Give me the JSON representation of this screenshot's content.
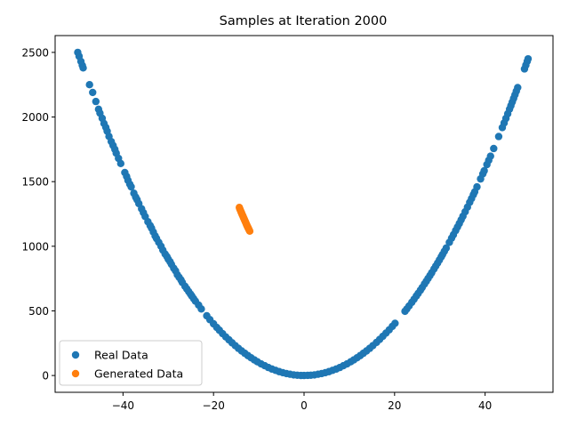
{
  "chart_data": {
    "type": "scatter",
    "title": "Samples at Iteration 2000",
    "xlabel": "",
    "ylabel": "",
    "xlim": [
      -55,
      55
    ],
    "ylim": [
      -130,
      2630
    ],
    "x_ticks": [
      -40,
      -20,
      0,
      20,
      40
    ],
    "x_tick_labels": [
      "−40",
      "−20",
      "0",
      "20",
      "40"
    ],
    "y_ticks": [
      0,
      500,
      1000,
      1500,
      2000,
      2500
    ],
    "y_tick_labels": [
      "0",
      "500",
      "1000",
      "1500",
      "2000",
      "2500"
    ],
    "grid": false,
    "legend_position": "lower-left",
    "series": [
      {
        "name": "Real Data",
        "color": "#1f77b4",
        "x": [
          -50.0,
          -49.7,
          -49.3,
          -49.0,
          -48.8,
          -47.4,
          -46.7,
          -46.0,
          -45.4,
          -45.1,
          -44.6,
          -44.2,
          -43.8,
          -43.5,
          -43.1,
          -42.6,
          -42.2,
          -41.8,
          -41.5,
          -41.0,
          -40.5,
          -39.6,
          -39.2,
          -38.9,
          -38.5,
          -38.2,
          -37.6,
          -37.2,
          -36.9,
          -36.5,
          -35.9,
          -35.5,
          -35.1,
          -34.5,
          -34.0,
          -33.7,
          -33.3,
          -32.9,
          -32.6,
          -32.1,
          -31.6,
          -31.2,
          -30.7,
          -30.3,
          -30.0,
          -29.6,
          -29.3,
          -28.8,
          -28.4,
          -28.0,
          -27.6,
          -27.2,
          -26.9,
          -26.3,
          -25.9,
          -25.5,
          -25.1,
          -24.8,
          -24.4,
          -24.0,
          -23.3,
          -22.7,
          -21.5,
          -20.8,
          -20.0,
          -19.3,
          -18.7,
          -18.0,
          -17.3,
          -16.6,
          -15.9,
          -15.2,
          -14.5,
          -13.8,
          -13.1,
          -12.4,
          -11.7,
          -11.0,
          -10.3,
          -9.5,
          -8.7,
          -7.9,
          -7.1,
          -6.3,
          -5.5,
          -4.7,
          -3.9,
          -3.1,
          -2.3,
          -1.5,
          -0.7,
          0.0,
          0.8,
          1.5,
          2.3,
          3.1,
          3.9,
          4.7,
          5.5,
          6.3,
          7.1,
          7.9,
          8.7,
          9.5,
          10.3,
          11.0,
          11.7,
          12.4,
          13.1,
          13.8,
          14.5,
          15.2,
          16.0,
          16.7,
          17.4,
          18.1,
          18.8,
          19.5,
          20.1,
          22.3,
          22.7,
          23.2,
          23.8,
          24.3,
          24.8,
          25.2,
          25.7,
          26.1,
          26.6,
          27.0,
          27.4,
          27.8,
          28.2,
          28.7,
          29.1,
          29.5,
          29.9,
          30.3,
          30.6,
          31.0,
          31.4,
          32.1,
          32.6,
          33.0,
          33.5,
          33.9,
          34.3,
          34.7,
          35.1,
          35.6,
          36.1,
          36.6,
          37.0,
          37.4,
          37.7,
          38.2,
          39.0,
          39.5,
          39.8,
          40.4,
          40.8,
          41.2,
          41.9,
          43.0,
          43.8,
          44.2,
          44.6,
          45.0,
          45.4,
          45.7,
          46.0,
          46.3,
          46.6,
          46.9,
          47.2,
          48.7,
          49.0,
          49.3,
          49.5
        ],
        "y": [
          2500,
          2470,
          2430,
          2400,
          2380,
          2250,
          2190,
          2120,
          2060,
          2030,
          1990,
          1950,
          1920,
          1890,
          1850,
          1810,
          1780,
          1750,
          1720,
          1680,
          1640,
          1570,
          1540,
          1510,
          1480,
          1460,
          1410,
          1380,
          1360,
          1330,
          1290,
          1260,
          1230,
          1190,
          1160,
          1140,
          1110,
          1080,
          1060,
          1030,
          1000,
          970,
          940,
          920,
          900,
          880,
          860,
          830,
          810,
          780,
          760,
          740,
          720,
          690,
          670,
          650,
          630,
          615,
          595,
          575,
          545,
          515,
          462,
          432,
          400,
          372,
          350,
          324,
          299,
          276,
          253,
          231,
          210,
          190,
          172,
          154,
          137,
          121,
          106,
          90,
          76,
          62,
          50,
          40,
          30,
          22,
          15,
          10,
          5,
          2,
          0,
          0,
          1,
          2,
          5,
          10,
          15,
          22,
          30,
          40,
          50,
          62,
          76,
          90,
          106,
          121,
          137,
          154,
          172,
          190,
          210,
          231,
          256,
          279,
          303,
          328,
          353,
          380,
          404,
          497,
          515,
          538,
          566,
          590,
          615,
          635,
          660,
          681,
          708,
          729,
          751,
          773,
          795,
          824,
          847,
          870,
          894,
          918,
          936,
          961,
          986,
          1030,
          1063,
          1089,
          1122,
          1149,
          1176,
          1204,
          1232,
          1267,
          1303,
          1340,
          1369,
          1399,
          1421,
          1459,
          1521,
          1560,
          1584,
          1632,
          1665,
          1697,
          1756,
          1849,
          1918,
          1954,
          1989,
          2025,
          2061,
          2088,
          2116,
          2144,
          2172,
          2200,
          2228,
          2372,
          2401,
          2430,
          2450
        ]
      },
      {
        "name": "Generated Data",
        "color": "#ff7f0e",
        "x": [
          -14.3,
          -14.2,
          -14.1,
          -14.0,
          -13.9,
          -13.8,
          -13.7,
          -13.6,
          -13.5,
          -13.4,
          -13.3,
          -13.2,
          -13.1,
          -13.0,
          -12.9,
          -12.8,
          -12.7,
          -12.6,
          -12.5,
          -12.4,
          -12.3,
          -12.2,
          -12.1,
          -12.0
        ],
        "y": [
          1300,
          1290,
          1282,
          1273,
          1264,
          1256,
          1248,
          1240,
          1232,
          1224,
          1216,
          1208,
          1200,
          1192,
          1184,
          1176,
          1168,
          1160,
          1152,
          1145,
          1138,
          1131,
          1124,
          1117
        ]
      }
    ]
  }
}
